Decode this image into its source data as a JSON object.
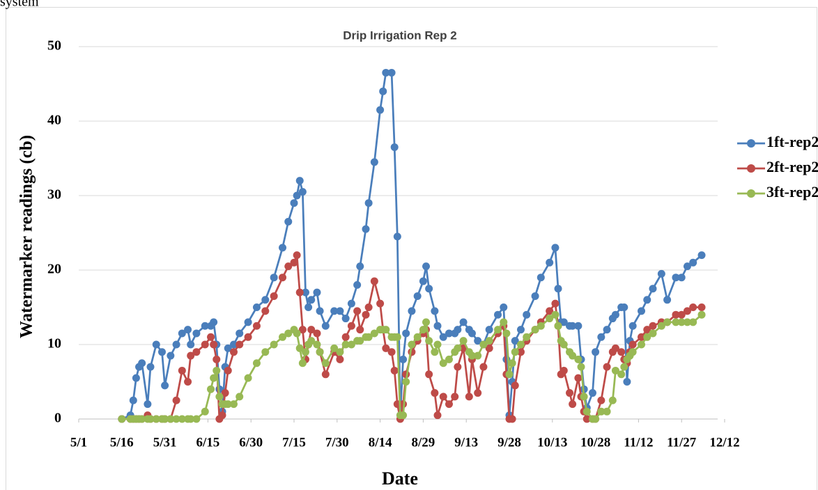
{
  "above_text": "system",
  "chart_data": {
    "type": "line",
    "title": "Drip Irrigation Rep 2",
    "x_label": "Date",
    "y_label": "Watermarker readings (cb)",
    "x": [
      "5/16",
      "5/19",
      "5/20",
      "5/21",
      "5/22",
      "5/23",
      "5/25",
      "5/26",
      "5/28",
      "5/30",
      "5/31",
      "6/2",
      "6/4",
      "6/6",
      "6/8",
      "6/9",
      "6/11",
      "6/14",
      "6/16",
      "6/17",
      "6/18",
      "6/19",
      "6/20",
      "6/21",
      "6/22",
      "6/24",
      "6/26",
      "6/29",
      "7/2",
      "7/5",
      "7/8",
      "7/11",
      "7/13",
      "7/15",
      "7/16",
      "7/17",
      "7/18",
      "7/19",
      "7/20",
      "7/21",
      "7/23",
      "7/24",
      "7/26",
      "7/29",
      "7/31",
      "8/2",
      "8/4",
      "8/6",
      "8/7",
      "8/9",
      "8/10",
      "8/12",
      "8/14",
      "8/15",
      "8/16",
      "8/18",
      "8/19",
      "8/20",
      "8/21",
      "8/22",
      "8/23",
      "8/25",
      "8/27",
      "8/29",
      "8/30",
      "8/31",
      "9/2",
      "9/3",
      "9/5",
      "9/7",
      "9/9",
      "9/10",
      "9/12",
      "9/14",
      "9/15",
      "9/17",
      "9/19",
      "9/21",
      "9/24",
      "9/26",
      "9/27",
      "9/28",
      "9/29",
      "9/30",
      "10/2",
      "10/4",
      "10/7",
      "10/9",
      "10/12",
      "10/14",
      "10/15",
      "10/16",
      "10/17",
      "10/19",
      "10/20",
      "10/22",
      "10/23",
      "10/24",
      "10/25",
      "10/27",
      "10/28",
      "10/30",
      "11/1",
      "11/3",
      "11/4",
      "11/6",
      "11/7",
      "11/8",
      "11/9",
      "11/10",
      "11/13",
      "11/15",
      "11/17",
      "11/20",
      "11/22",
      "11/25",
      "11/27",
      "11/29",
      "12/1",
      "12/4"
    ],
    "series": [
      {
        "name": "1ft-rep2",
        "color": "#4a7ebb",
        "values": [
          0,
          0.5,
          2.5,
          5.5,
          7,
          7.5,
          2,
          7,
          10,
          9,
          4.5,
          8.5,
          10,
          11.5,
          12,
          10,
          11.5,
          12.5,
          12.5,
          13,
          10,
          4,
          1,
          7,
          9.5,
          10,
          11.5,
          13,
          15,
          16,
          19,
          23,
          26.5,
          29,
          30,
          32,
          30.5,
          17,
          15,
          16,
          17,
          14.5,
          12.5,
          14.5,
          14.5,
          13.5,
          15.5,
          18,
          20.5,
          25.5,
          29,
          34.5,
          41.5,
          44,
          46.5,
          46.5,
          36.5,
          24.5,
          0.5,
          8,
          11.5,
          14.5,
          16.5,
          18.5,
          20.5,
          17.5,
          14.5,
          12.5,
          11,
          11.5,
          11.5,
          12,
          13,
          12,
          11.5,
          10.5,
          10,
          12,
          14,
          15,
          8,
          0.5,
          5,
          10.5,
          12,
          14,
          16.5,
          19,
          21,
          23,
          17.5,
          13,
          13,
          12.5,
          12.5,
          12.5,
          8,
          4,
          1.5,
          3.5,
          9,
          11,
          12,
          13.5,
          14,
          15,
          15,
          5,
          10.5,
          12.5,
          14.5,
          16,
          17.5,
          19.5,
          16,
          19,
          19,
          20.5,
          21,
          22
        ]
      },
      {
        "name": "2ft-rep2",
        "color": "#be4b48",
        "values": [
          0,
          0,
          0,
          0,
          0,
          0,
          0.5,
          0,
          0,
          0,
          0,
          0,
          2.5,
          6.5,
          5,
          8.5,
          9,
          10,
          11,
          10,
          8,
          0,
          0.5,
          3.5,
          6.5,
          9,
          10,
          11,
          12.5,
          14.5,
          16.5,
          19,
          20.5,
          21,
          22,
          17,
          12,
          8,
          10,
          12,
          11.5,
          9,
          6,
          9,
          8,
          11,
          12.5,
          14.5,
          12,
          14,
          15,
          18.5,
          15.5,
          12,
          9.5,
          9,
          6.5,
          2,
          0,
          2,
          6,
          9,
          10.5,
          11.5,
          12,
          6,
          3.5,
          0.5,
          3,
          2,
          3,
          7,
          9.5,
          3,
          8,
          3.5,
          7,
          9.5,
          11.5,
          12.5,
          6,
          0,
          0,
          4.5,
          9,
          10.5,
          12,
          13,
          14.5,
          15.5,
          12.5,
          6,
          6.5,
          3.5,
          2,
          5.5,
          3,
          1,
          0,
          0,
          0,
          2.5,
          7,
          9,
          9.5,
          9,
          8,
          7.5,
          9,
          10,
          11,
          12,
          12.5,
          13,
          13,
          14,
          14,
          14.5,
          15,
          15
        ]
      },
      {
        "name": "3ft-rep2",
        "color": "#98b954",
        "values": [
          0,
          0,
          0,
          0,
          0,
          0,
          0,
          0,
          0,
          0,
          0,
          0,
          0,
          0,
          0,
          0,
          0,
          1,
          4,
          5.5,
          6.5,
          3,
          2,
          2,
          2,
          2,
          3,
          5.5,
          7.5,
          9,
          10,
          11,
          11.5,
          12,
          11.5,
          9.5,
          7.5,
          9,
          10,
          10.5,
          10,
          9,
          7.5,
          9.5,
          9,
          10,
          10,
          10.5,
          10.5,
          11,
          11,
          11.5,
          12,
          12,
          12,
          11,
          11,
          11,
          0.5,
          0.5,
          5,
          10,
          11,
          12,
          13,
          10.5,
          9,
          10,
          7.5,
          8,
          9,
          9.5,
          10.5,
          9,
          8.5,
          8.5,
          10,
          10.5,
          12,
          13,
          11.5,
          6,
          7.5,
          9,
          10,
          11,
          12,
          12.5,
          13.5,
          14,
          12.5,
          10.5,
          10,
          9,
          8.5,
          8,
          7,
          3,
          1,
          0,
          0,
          1,
          1,
          2.5,
          6.5,
          6,
          7,
          8,
          8.5,
          9,
          10,
          11,
          11.5,
          12.5,
          13,
          13,
          13,
          13,
          13,
          14
        ]
      }
    ],
    "xlim": [
      "5/1",
      "12/12"
    ],
    "xticks": [
      "5/1",
      "5/16",
      "5/31",
      "6/15",
      "6/30",
      "7/15",
      "7/30",
      "8/14",
      "8/29",
      "9/13",
      "9/28",
      "10/13",
      "10/28",
      "11/12",
      "11/27",
      "12/12"
    ],
    "ylim": [
      0,
      50
    ],
    "yticks": [
      0,
      10,
      20,
      30,
      40,
      50
    ],
    "grid": true,
    "legend": "right"
  }
}
